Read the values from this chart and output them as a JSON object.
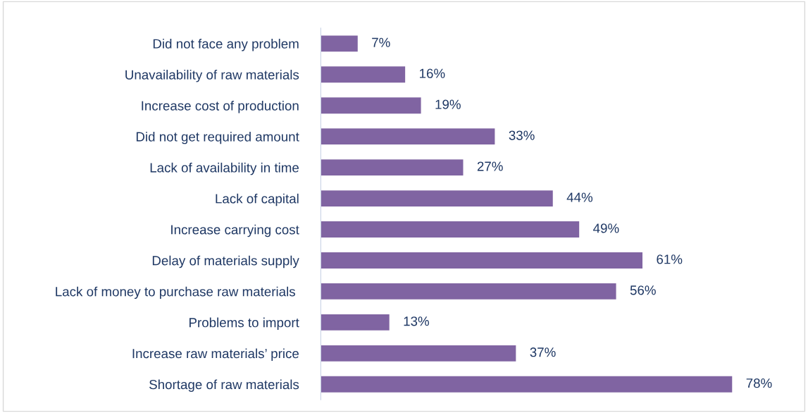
{
  "chart_data": {
    "type": "bar",
    "orientation": "horizontal",
    "categories": [
      "Did not face any problem",
      "Unavailability of raw materials",
      "Increase cost of production",
      "Did not get required amount",
      "Lack of availability in time",
      "Lack of capital",
      "Increase carrying cost",
      "Delay of materials supply",
      "Lack of money to purchase raw materials ",
      "Problems to import",
      "Increase raw materials’ price",
      "Shortage of raw materials"
    ],
    "values": [
      7,
      16,
      19,
      33,
      27,
      44,
      49,
      61,
      56,
      13,
      37,
      78
    ],
    "value_labels": [
      "7%",
      "16%",
      "19%",
      "33%",
      "27%",
      "44%",
      "49%",
      "61%",
      "56%",
      "13%",
      "37%",
      "78%"
    ],
    "color": "#8064a2",
    "grid": false,
    "legend": false
  }
}
